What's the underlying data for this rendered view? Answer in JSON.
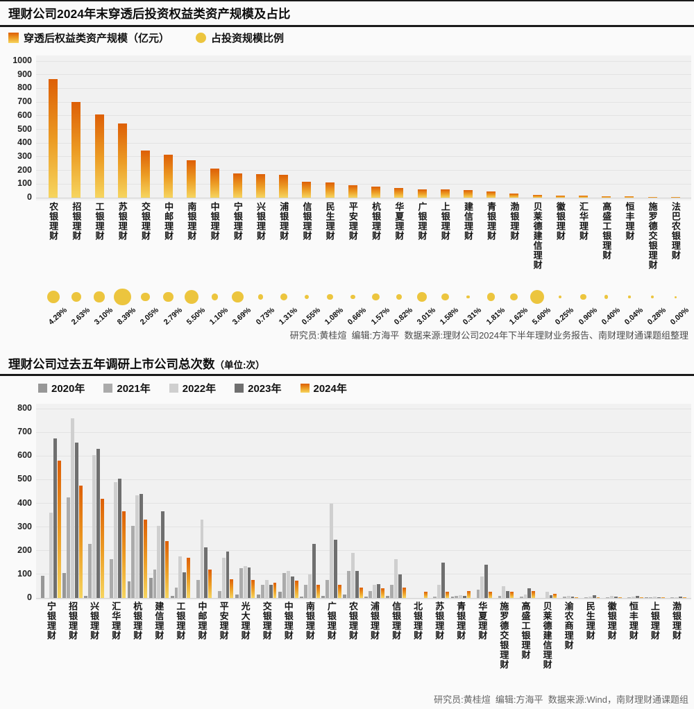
{
  "chart_data": [
    {
      "type": "bar",
      "title": "理财公司2024年末穿透后投资权益类资产规模及占比",
      "legend": [
        "穿透后权益类资产规模（亿元）",
        "占投资规模比例"
      ],
      "categories": [
        "农银理财",
        "招银理财",
        "工银理财",
        "苏银理财",
        "交银理财",
        "中邮理财",
        "南银理财",
        "中银理财",
        "宁银理财",
        "兴银理财",
        "浦银理财",
        "信银理财",
        "民生理财",
        "平安理财",
        "杭银理财",
        "华夏理财",
        "广银理财",
        "上银理财",
        "建信理财",
        "青银理财",
        "渤银理财",
        "贝莱德建信理财",
        "徽银理财",
        "汇华理财",
        "高盛工银理财",
        "恒丰理财",
        "施罗德交银理财",
        "法巴农银理财"
      ],
      "values": [
        870,
        700,
        610,
        545,
        345,
        315,
        272,
        212,
        178,
        174,
        170,
        117,
        114,
        92,
        80,
        70,
        63,
        60,
        56,
        44,
        32,
        20,
        17,
        13,
        10,
        8,
        7,
        2
      ],
      "bubble_series_name": "占投资规模比例",
      "bubble_percents": [
        4.29,
        2.63,
        3.1,
        8.39,
        2.05,
        2.79,
        5.5,
        1.1,
        3.69,
        0.73,
        1.31,
        0.55,
        1.08,
        0.66,
        1.57,
        0.82,
        3.01,
        1.58,
        0.31,
        1.81,
        1.62,
        5.6,
        0.25,
        0.9,
        0.4,
        0.04,
        0.28,
        0.0
      ],
      "bubble_percent_labels": [
        "4.29%",
        "2.63%",
        "3.10%",
        "8.39%",
        "2.05%",
        "2.79%",
        "5.50%",
        "1.10%",
        "3.69%",
        "0.73%",
        "1.31%",
        "0.55%",
        "1.08%",
        "0.66%",
        "1.57%",
        "0.82%",
        "3.01%",
        "1.58%",
        "0.31%",
        "1.81%",
        "1.62%",
        "5.60%",
        "0.25%",
        "0.90%",
        "0.40%",
        "0.04%",
        "0.28%",
        "0.00%"
      ],
      "ylim": [
        0,
        1000
      ],
      "ytick_step": 100,
      "grid": true,
      "legend_position": "top-left",
      "credit": "研究员:黄桂煊  编辑:方海平  数据来源:理财公司2024年下半年理财业务报告、南财理财通课题组整理"
    },
    {
      "type": "bar",
      "title": "理财公司过去五年调研上市公司总次数",
      "title_suffix": "（单位:次）",
      "categories": [
        "宁银理财",
        "招银理财",
        "兴银理财",
        "汇华理财",
        "杭银理财",
        "建信理财",
        "工银理财",
        "中邮理财",
        "平安理财",
        "光大理财",
        "交银理财",
        "中银理财",
        "南银理财",
        "广银理财",
        "农银理财",
        "浦银理财",
        "信银理财",
        "北银理财",
        "苏银理财",
        "青银理财",
        "华夏理财",
        "施罗德交银理财",
        "高盛工银理财",
        "贝莱德建信理财",
        "渝农商理财",
        "民生理财",
        "徽银理财",
        "恒丰理财",
        "上银理财",
        "渤银理财"
      ],
      "series": [
        {
          "name": "2020年",
          "color": "#979797",
          "values": [
            95,
            105,
            10,
            0,
            70,
            85,
            8,
            0,
            0,
            15,
            15,
            25,
            5,
            10,
            15,
            5,
            10,
            0,
            0,
            5,
            0,
            0,
            0,
            0,
            0,
            0,
            0,
            0,
            3,
            0
          ]
        },
        {
          "name": "2021年",
          "color": "#ababab",
          "values": [
            0,
            425,
            230,
            165,
            305,
            120,
            45,
            75,
            30,
            125,
            55,
            105,
            55,
            75,
            115,
            30,
            55,
            0,
            5,
            8,
            35,
            10,
            5,
            0,
            5,
            3,
            3,
            3,
            2,
            2
          ]
        },
        {
          "name": "2022年",
          "color": "#cfcfcf",
          "values": [
            360,
            760,
            605,
            490,
            435,
            305,
            175,
            330,
            170,
            135,
            75,
            115,
            100,
            400,
            190,
            55,
            165,
            0,
            55,
            12,
            90,
            50,
            15,
            25,
            8,
            5,
            8,
            5,
            5,
            3
          ]
        },
        {
          "name": "2023年",
          "color": "#6f6f6f",
          "values": [
            675,
            655,
            630,
            505,
            440,
            365,
            108,
            215,
            195,
            130,
            55,
            90,
            230,
            245,
            115,
            60,
            100,
            0,
            150,
            8,
            140,
            30,
            40,
            12,
            5,
            12,
            5,
            8,
            3,
            5
          ]
        },
        {
          "name": "2024年",
          "color": "gradient-orange",
          "values": [
            580,
            475,
            420,
            365,
            330,
            240,
            170,
            120,
            80,
            75,
            65,
            72,
            55,
            55,
            45,
            40,
            45,
            25,
            25,
            28,
            25,
            25,
            30,
            18,
            3,
            3,
            3,
            3,
            2,
            2
          ]
        }
      ],
      "ylim": [
        0,
        800
      ],
      "ytick_step": 100,
      "grid": true,
      "legend_position": "top-left",
      "credit": "研究员:黄桂煊  编辑:方海平  数据来源:Wind，南财理财通课题组"
    }
  ],
  "colors": {
    "bar_gradient_top": "#dd5f06",
    "bar_gradient_mid": "#ec9c24",
    "bar_gradient_bottom": "#f6d55f",
    "bubble": "#ecc53e",
    "title_rule": "#1a1a1a",
    "plot_background": "#f1f1f1"
  }
}
